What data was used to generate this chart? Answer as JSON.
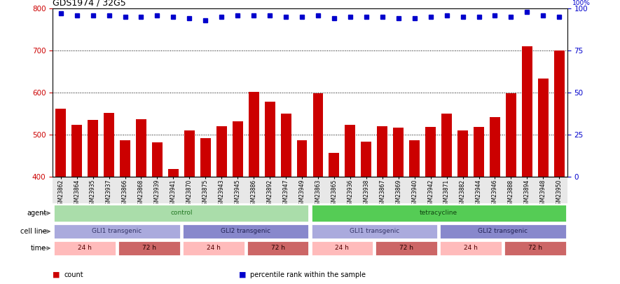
{
  "title": "GDS1974 / 32G5",
  "samples": [
    "GSM23862",
    "GSM23864",
    "GSM23935",
    "GSM23937",
    "GSM23866",
    "GSM23868",
    "GSM23939",
    "GSM23941",
    "GSM23870",
    "GSM23875",
    "GSM23943",
    "GSM23945",
    "GSM23886",
    "GSM23892",
    "GSM23947",
    "GSM23949",
    "GSM23863",
    "GSM23865",
    "GSM23936",
    "GSM23938",
    "GSM23867",
    "GSM23869",
    "GSM23940",
    "GSM23942",
    "GSM23871",
    "GSM23882",
    "GSM23944",
    "GSM23946",
    "GSM23888",
    "GSM23894",
    "GSM23948",
    "GSM23950"
  ],
  "counts": [
    562,
    523,
    535,
    551,
    487,
    537,
    481,
    418,
    510,
    491,
    520,
    531,
    601,
    578,
    550,
    487,
    598,
    457,
    523,
    483,
    520,
    516,
    487,
    519,
    550,
    510,
    519,
    541,
    598,
    710,
    633,
    700
  ],
  "percentile_ranks": [
    97,
    96,
    96,
    96,
    95,
    95,
    96,
    95,
    94,
    93,
    95,
    96,
    96,
    96,
    95,
    95,
    96,
    94,
    95,
    95,
    95,
    94,
    94,
    95,
    96,
    95,
    95,
    96,
    95,
    98,
    96,
    95
  ],
  "ylim_left": [
    400,
    800
  ],
  "ylim_right": [
    0,
    100
  ],
  "yticks_left": [
    400,
    500,
    600,
    700,
    800
  ],
  "yticks_right": [
    0,
    25,
    50,
    75,
    100
  ],
  "bar_color": "#cc0000",
  "dot_color": "#0000cc",
  "agent_items": [
    {
      "label": "control",
      "span": [
        0,
        16
      ],
      "facecolor": "#aaddaa",
      "textcolor": "#227722"
    },
    {
      "label": "tetracycline",
      "span": [
        16,
        32
      ],
      "facecolor": "#55cc55",
      "textcolor": "#114411"
    }
  ],
  "cellline_items": [
    {
      "label": "GLI1 transgenic",
      "span": [
        0,
        8
      ],
      "facecolor": "#aaaadd",
      "textcolor": "#333366"
    },
    {
      "label": "GLI2 transgenic",
      "span": [
        8,
        16
      ],
      "facecolor": "#8888cc",
      "textcolor": "#222255"
    },
    {
      "label": "GLI1 transgenic",
      "span": [
        16,
        24
      ],
      "facecolor": "#aaaadd",
      "textcolor": "#333366"
    },
    {
      "label": "GLI2 transgenic",
      "span": [
        24,
        32
      ],
      "facecolor": "#8888cc",
      "textcolor": "#222255"
    }
  ],
  "time_items": [
    {
      "label": "24 h",
      "span": [
        0,
        4
      ],
      "facecolor": "#ffbbbb",
      "textcolor": "#550000"
    },
    {
      "label": "72 h",
      "span": [
        4,
        8
      ],
      "facecolor": "#cc6666",
      "textcolor": "#220000"
    },
    {
      "label": "24 h",
      "span": [
        8,
        12
      ],
      "facecolor": "#ffbbbb",
      "textcolor": "#550000"
    },
    {
      "label": "72 h",
      "span": [
        12,
        16
      ],
      "facecolor": "#cc6666",
      "textcolor": "#220000"
    },
    {
      "label": "24 h",
      "span": [
        16,
        20
      ],
      "facecolor": "#ffbbbb",
      "textcolor": "#550000"
    },
    {
      "label": "72 h",
      "span": [
        20,
        24
      ],
      "facecolor": "#cc6666",
      "textcolor": "#220000"
    },
    {
      "label": "24 h",
      "span": [
        24,
        28
      ],
      "facecolor": "#ffbbbb",
      "textcolor": "#550000"
    },
    {
      "label": "72 h",
      "span": [
        28,
        32
      ],
      "facecolor": "#cc6666",
      "textcolor": "#220000"
    }
  ],
  "row_labels": [
    "agent",
    "cell line",
    "time"
  ],
  "legend_items": [
    {
      "label": "count",
      "color": "#cc0000"
    },
    {
      "label": "percentile rank within the sample",
      "color": "#0000cc"
    }
  ],
  "fig_width": 8.85,
  "fig_height": 4.05,
  "dpi": 100
}
